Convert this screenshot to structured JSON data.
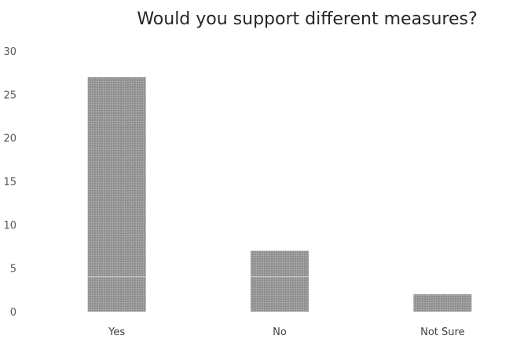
{
  "chart_data": {
    "type": "bar",
    "title": "Would you support different measures?",
    "xlabel": "",
    "ylabel": "",
    "categories": [
      "Yes",
      "No",
      "Not Sure"
    ],
    "values": [
      27,
      7,
      2
    ],
    "ylim": [
      0,
      30
    ],
    "yticks": [
      0,
      5,
      10,
      15,
      20,
      25,
      30
    ],
    "grid": false,
    "legend": "none",
    "colors": {
      "bar": "#9b9b9b",
      "bar_texture": "#7f7f7f",
      "bar_line": "#d9d9d9",
      "text": "#595959"
    }
  }
}
